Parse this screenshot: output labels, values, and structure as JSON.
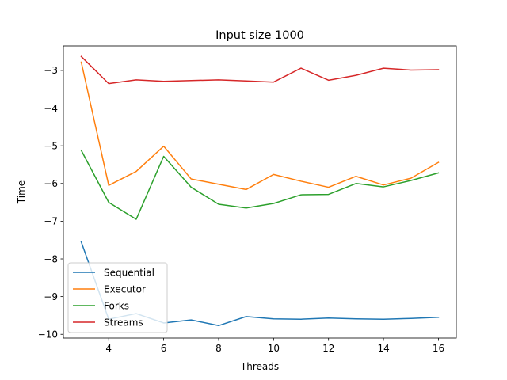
{
  "chart_data": {
    "type": "line",
    "title": "Input size 1000",
    "xlabel": "Threads",
    "ylabel": "Time",
    "xlim": [
      2.35,
      16.65
    ],
    "ylim": [
      -10.1,
      -2.35
    ],
    "xticks": [
      4,
      6,
      8,
      10,
      12,
      14,
      16
    ],
    "xtick_labels": [
      "4",
      "6",
      "8",
      "10",
      "12",
      "14",
      "16"
    ],
    "yticks": [
      -10,
      -9,
      -8,
      -7,
      -6,
      -5,
      -4,
      -3
    ],
    "ytick_labels": [
      "−10",
      "−9",
      "−8",
      "−7",
      "−6",
      "−5",
      "−4",
      "−3"
    ],
    "grid": false,
    "legend_position": "lower-left",
    "x": [
      3,
      4,
      5,
      6,
      7,
      8,
      9,
      10,
      11,
      12,
      13,
      14,
      15,
      16
    ],
    "series": [
      {
        "name": "Sequential",
        "color": "#1f77b4",
        "values": [
          -7.55,
          -9.6,
          -9.45,
          -9.7,
          -9.62,
          -9.77,
          -9.53,
          -9.59,
          -9.6,
          -9.57,
          -9.59,
          -9.6,
          -9.58,
          -9.55
        ]
      },
      {
        "name": "Executor",
        "color": "#ff7f0e",
        "values": [
          -2.78,
          -6.05,
          -5.68,
          -5.01,
          -5.88,
          -6.02,
          -6.16,
          -5.76,
          -5.94,
          -6.1,
          -5.81,
          -6.04,
          -5.86,
          -5.44
        ]
      },
      {
        "name": "Forks",
        "color": "#2ca02c",
        "values": [
          -5.12,
          -6.5,
          -6.95,
          -5.28,
          -6.1,
          -6.55,
          -6.65,
          -6.53,
          -6.3,
          -6.29,
          -6.0,
          -6.09,
          -5.92,
          -5.72
        ]
      },
      {
        "name": "Streams",
        "color": "#d62728",
        "values": [
          -2.63,
          -3.35,
          -3.25,
          -3.29,
          -3.27,
          -3.25,
          -3.28,
          -3.31,
          -2.94,
          -3.26,
          -3.13,
          -2.94,
          -2.99,
          -2.98
        ]
      }
    ]
  }
}
